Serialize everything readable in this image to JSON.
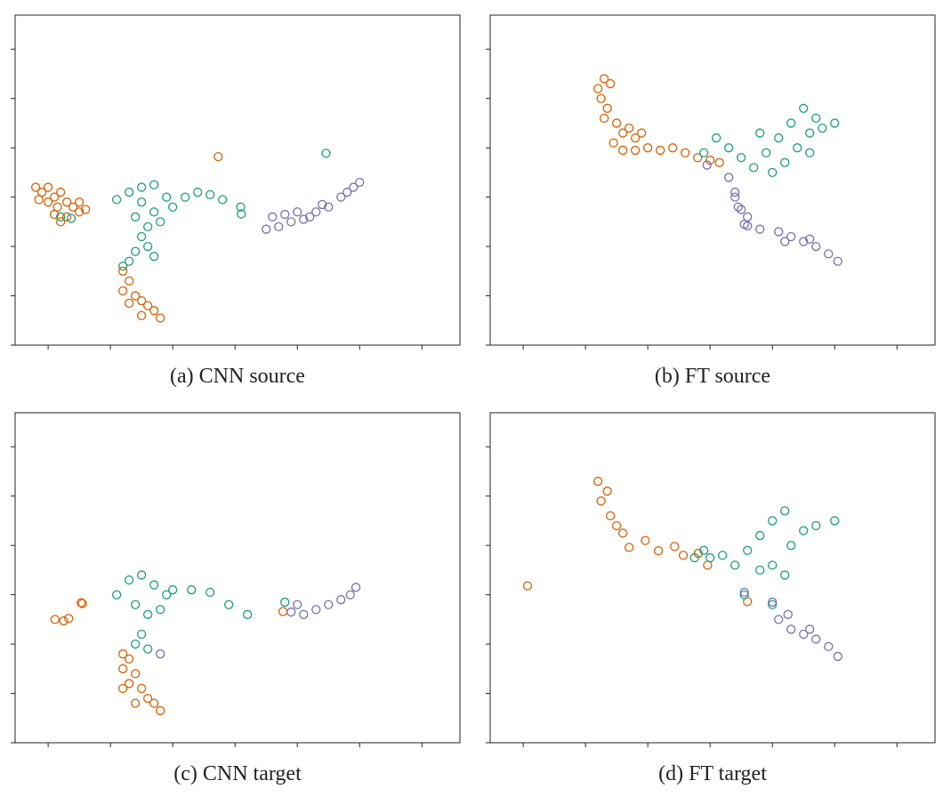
{
  "chart_data": [
    {
      "type": "scatter",
      "title": "(a) CNN source",
      "xlim": [
        0.47,
        7.61
      ],
      "ylim": [
        0,
        6.69
      ],
      "xticks": [
        1,
        2,
        3,
        4,
        5,
        6,
        7
      ],
      "yticks": [
        0,
        1,
        2,
        3,
        4,
        5,
        6
      ],
      "series": [
        {
          "color": "#d95f02",
          "x": [
            0.8,
            0.9,
            1.0,
            1.1,
            1.2,
            0.85,
            1.0,
            1.15,
            1.3,
            1.4,
            1.5,
            1.3,
            1.1,
            1.2,
            1.5,
            1.6,
            2.2,
            2.3,
            2.2,
            2.4,
            2.5,
            2.6,
            2.7,
            2.8,
            2.5,
            2.3,
            3.73
          ],
          "y": [
            3.2,
            3.1,
            3.2,
            3.0,
            3.1,
            2.95,
            2.9,
            2.8,
            2.9,
            2.8,
            2.7,
            2.6,
            2.65,
            2.5,
            2.9,
            2.75,
            1.5,
            1.3,
            1.1,
            1.0,
            0.9,
            0.8,
            0.7,
            0.55,
            0.6,
            0.85,
            3.82
          ]
        },
        {
          "color": "#1b9e77",
          "x": [
            2.1,
            2.3,
            2.5,
            2.7,
            2.9,
            2.5,
            2.7,
            2.4,
            2.6,
            2.8,
            3.0,
            3.2,
            3.4,
            3.6,
            3.8,
            2.5,
            2.6,
            2.7,
            2.4,
            2.3,
            2.2,
            4.09,
            4.1,
            5.46,
            1.37,
            1.2
          ],
          "y": [
            2.95,
            3.1,
            3.2,
            3.25,
            3.0,
            2.9,
            2.7,
            2.6,
            2.4,
            2.5,
            2.8,
            3.0,
            3.1,
            3.05,
            2.95,
            2.2,
            2.0,
            1.8,
            1.9,
            1.7,
            1.6,
            2.8,
            2.66,
            3.89,
            2.57,
            2.6
          ]
        },
        {
          "color": "#7570b3",
          "x": [
            4.5,
            4.7,
            4.9,
            5.1,
            5.3,
            5.5,
            5.7,
            5.9,
            6.0,
            4.6,
            4.8,
            5.0,
            5.2,
            5.4,
            5.8
          ],
          "y": [
            2.35,
            2.4,
            2.5,
            2.55,
            2.7,
            2.8,
            3.0,
            3.2,
            3.3,
            2.6,
            2.65,
            2.7,
            2.6,
            2.85,
            3.1
          ]
        }
      ]
    },
    {
      "type": "scatter",
      "title": "(b) FT source",
      "xlim": [
        0.47,
        7.61
      ],
      "ylim": [
        0,
        6.69
      ],
      "xticks": [
        1,
        2,
        3,
        4,
        5,
        6,
        7
      ],
      "yticks": [
        0,
        1,
        2,
        3,
        4,
        5,
        6
      ],
      "series": [
        {
          "color": "#d95f02",
          "x": [
            2.2,
            2.3,
            2.4,
            2.25,
            2.35,
            2.3,
            2.5,
            2.6,
            2.7,
            2.8,
            2.45,
            2.6,
            2.8,
            3.0,
            3.2,
            3.4,
            3.6,
            3.8,
            4.0,
            4.15,
            2.9
          ],
          "y": [
            5.2,
            5.4,
            5.3,
            5.0,
            4.8,
            4.6,
            4.5,
            4.3,
            4.4,
            4.2,
            4.1,
            3.95,
            3.95,
            4.0,
            3.95,
            4.0,
            3.9,
            3.8,
            3.75,
            3.7,
            4.3
          ]
        },
        {
          "color": "#1b9e77",
          "x": [
            4.3,
            4.5,
            4.7,
            4.9,
            5.1,
            5.3,
            5.5,
            5.4,
            5.6,
            5.8,
            6.0,
            5.2,
            5.0,
            4.8,
            5.6,
            5.7,
            3.9,
            4.1
          ],
          "y": [
            4.0,
            3.8,
            3.6,
            3.9,
            4.2,
            4.5,
            4.8,
            4.0,
            4.3,
            4.4,
            4.5,
            3.7,
            3.5,
            4.3,
            3.9,
            4.6,
            3.9,
            4.2
          ]
        },
        {
          "color": "#7570b3",
          "x": [
            3.95,
            4.3,
            4.4,
            4.45,
            4.6,
            4.55,
            4.8,
            4.6,
            5.1,
            5.3,
            5.5,
            5.7,
            5.9,
            6.05,
            5.2,
            5.6,
            4.5,
            4.4
          ],
          "y": [
            3.65,
            3.4,
            3.1,
            2.8,
            2.6,
            2.45,
            2.35,
            2.42,
            2.3,
            2.2,
            2.1,
            2.0,
            1.85,
            1.7,
            2.1,
            2.15,
            2.75,
            3.0
          ]
        }
      ]
    },
    {
      "type": "scatter",
      "title": "(c) CNN target",
      "xlim": [
        0.47,
        7.61
      ],
      "ylim": [
        0,
        6.69
      ],
      "xticks": [
        1,
        2,
        3,
        4,
        5,
        6,
        7
      ],
      "yticks": [
        0,
        1,
        2,
        3,
        4,
        5,
        6
      ],
      "series": [
        {
          "color": "#d95f02",
          "x": [
            1.11,
            1.25,
            1.33,
            1.53,
            1.55,
            2.2,
            2.3,
            2.2,
            2.4,
            2.3,
            2.5,
            2.6,
            2.7,
            2.8,
            2.4,
            2.2,
            4.77
          ],
          "y": [
            2.5,
            2.47,
            2.52,
            2.84,
            2.82,
            1.8,
            1.7,
            1.5,
            1.4,
            1.2,
            1.1,
            0.9,
            0.8,
            0.65,
            0.8,
            1.1,
            2.66
          ]
        },
        {
          "color": "#1b9e77",
          "x": [
            2.1,
            2.3,
            2.5,
            2.7,
            2.9,
            2.4,
            2.6,
            2.8,
            3.0,
            3.3,
            3.6,
            3.9,
            4.2,
            2.5,
            2.6,
            2.4,
            4.8
          ],
          "y": [
            3.0,
            3.3,
            3.4,
            3.2,
            3.0,
            2.8,
            2.6,
            2.7,
            3.1,
            3.1,
            3.05,
            2.8,
            2.6,
            2.2,
            1.9,
            2.0,
            2.85
          ]
        },
        {
          "color": "#7570b3",
          "x": [
            4.9,
            5.1,
            5.3,
            5.5,
            5.7,
            5.85,
            5.94,
            5.0,
            2.8
          ],
          "y": [
            2.65,
            2.6,
            2.7,
            2.8,
            2.9,
            3.0,
            3.15,
            2.8,
            1.8
          ]
        }
      ]
    },
    {
      "type": "scatter",
      "title": "(d) FT target",
      "xlim": [
        0.47,
        7.61
      ],
      "ylim": [
        0,
        6.69
      ],
      "xticks": [
        1,
        2,
        3,
        4,
        5,
        6,
        7
      ],
      "yticks": [
        0,
        1,
        2,
        3,
        4,
        5,
        6
      ],
      "series": [
        {
          "color": "#d95f02",
          "x": [
            2.2,
            2.35,
            2.25,
            2.4,
            2.5,
            2.6,
            1.07,
            2.7,
            2.96,
            3.17,
            3.43,
            3.57,
            3.81,
            3.96,
            4.6
          ],
          "y": [
            5.3,
            5.1,
            4.9,
            4.6,
            4.4,
            4.25,
            3.18,
            3.96,
            4.1,
            3.89,
            3.98,
            3.8,
            3.84,
            3.6,
            2.86
          ]
        },
        {
          "color": "#1b9e77",
          "x": [
            4.2,
            4.4,
            4.6,
            4.8,
            5.0,
            5.2,
            5.0,
            5.3,
            5.5,
            5.7,
            6.0,
            5.2,
            4.8,
            3.9,
            4.0,
            3.75,
            4.55,
            5.0
          ],
          "y": [
            3.8,
            3.6,
            3.9,
            4.2,
            4.5,
            4.7,
            3.6,
            4.0,
            4.3,
            4.4,
            4.5,
            3.4,
            3.5,
            3.9,
            3.75,
            3.75,
            3.0,
            2.8
          ]
        },
        {
          "color": "#7570b3",
          "x": [
            4.55,
            5.0,
            5.1,
            5.3,
            5.5,
            5.7,
            5.9,
            6.05,
            5.25,
            5.6
          ],
          "y": [
            3.05,
            2.85,
            2.5,
            2.3,
            2.2,
            2.1,
            1.95,
            1.75,
            2.6,
            2.3
          ]
        }
      ]
    }
  ]
}
